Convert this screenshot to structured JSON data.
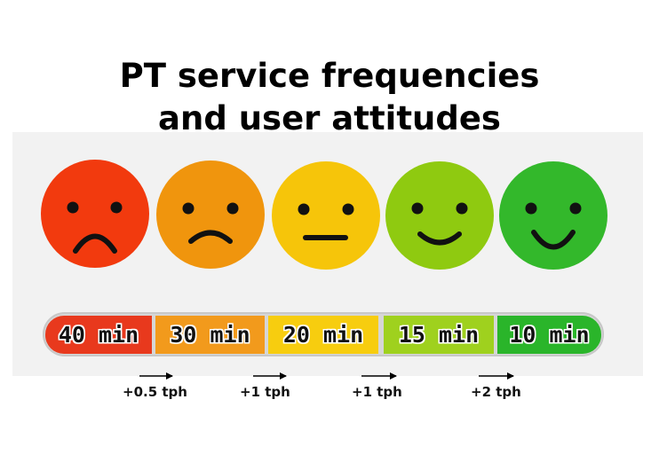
{
  "title_line1": "PT service frequencies",
  "title_line2": "and user attitudes",
  "scale": [
    {
      "label": "40 min",
      "color": "#e8391d",
      "face_color": "#f23a0e",
      "mood": "very-sad"
    },
    {
      "label": "30 min",
      "color": "#f29a1c",
      "face_color": "#f0950d",
      "mood": "sad"
    },
    {
      "label": "20 min",
      "color": "#f7cd0f",
      "face_color": "#f6c50a",
      "mood": "neutral"
    },
    {
      "label": "15 min",
      "color": "#9fd11e",
      "face_color": "#8fca10",
      "mood": "happy"
    },
    {
      "label": "10 min",
      "color": "#2ab52a",
      "face_color": "#33b82b",
      "mood": "very-happy"
    }
  ],
  "increments": [
    "+0.5 tph",
    "+1 tph",
    "+1 tph",
    "+2 tph"
  ]
}
